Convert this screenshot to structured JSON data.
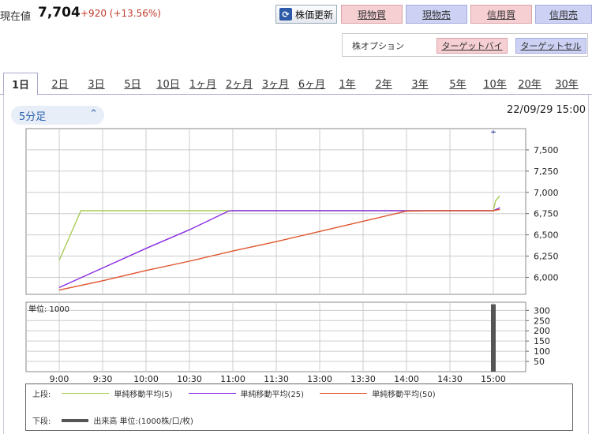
{
  "header": {
    "price_label": "現在値",
    "price_value": "7,704",
    "price_change": "+920 (+13.56%)",
    "refresh_label": "株価更新",
    "buttons": [
      "現物買",
      "現物売",
      "信用買",
      "信用売"
    ]
  },
  "options": {
    "label": "株オプション",
    "target_buy": "ターゲットバイ",
    "target_sell": "ターゲットセル"
  },
  "tabs": [
    "1日",
    "2日",
    "3日",
    "5日",
    "10日",
    "1ヶ月",
    "2ヶ月",
    "3ヶ月",
    "6ヶ月",
    "1年",
    "2年",
    "3年",
    "5年",
    "10年",
    "20年",
    "30年"
  ],
  "active_tab": "1日",
  "interval_select": "5分足",
  "datetime": "22/09/29 15:00",
  "volume_unit": "単位: 1000",
  "legend": {
    "upper_label": "上段:",
    "lower_label": "下段:",
    "ma5": "単純移動平均(5)",
    "ma25": "単純移動平均(25)",
    "ma50": "単純移動平均(50)",
    "volume": "出来高 単位:(1000株/口/枚)"
  },
  "colors": {
    "ma5": "#a8cc55",
    "ma25": "#8a2be2",
    "ma50": "#e0552e",
    "volume": "#555555",
    "price": "#2d3fa0"
  },
  "chart_data": {
    "type": "line",
    "x_ticks": [
      "9:00",
      "9:30",
      "10:00",
      "10:30",
      "11:00",
      "11:30",
      "13:00",
      "13:30",
      "14:00",
      "14:30",
      "15:00"
    ],
    "y_ticks": [
      "6,000",
      "6,250",
      "6,500",
      "6,750",
      "7,000",
      "7,250",
      "7,500"
    ],
    "ylim": [
      5800,
      7750
    ],
    "vol_ticks": [
      "50",
      "100",
      "150",
      "200",
      "250",
      "300"
    ],
    "vol_ylim": [
      0,
      340
    ],
    "series": [
      {
        "name": "単純移動平均(5)",
        "key": "ma5",
        "points": [
          [
            0,
            6200
          ],
          [
            0.5,
            6784
          ],
          [
            1,
            6784
          ],
          [
            2,
            6784
          ],
          [
            3,
            6784
          ],
          [
            4,
            6784
          ],
          [
            5,
            6784
          ],
          [
            6,
            6784
          ],
          [
            7,
            6784
          ],
          [
            8,
            6784
          ],
          [
            9,
            6784
          ],
          [
            10,
            6784
          ],
          [
            10.05,
            6900
          ],
          [
            10.15,
            6960
          ]
        ]
      },
      {
        "name": "単純移動平均(25)",
        "key": "ma25",
        "points": [
          [
            0,
            5880
          ],
          [
            1,
            6110
          ],
          [
            2,
            6340
          ],
          [
            3,
            6560
          ],
          [
            3.9,
            6780
          ],
          [
            4,
            6784
          ],
          [
            5,
            6784
          ],
          [
            6,
            6784
          ],
          [
            7,
            6784
          ],
          [
            8,
            6784
          ],
          [
            9,
            6784
          ],
          [
            10,
            6784
          ],
          [
            10.15,
            6820
          ]
        ]
      },
      {
        "name": "単純移動平均(50)",
        "key": "ma50",
        "points": [
          [
            0,
            5850
          ],
          [
            1,
            5960
          ],
          [
            2,
            6080
          ],
          [
            3,
            6190
          ],
          [
            4,
            6310
          ],
          [
            5,
            6420
          ],
          [
            6,
            6540
          ],
          [
            7,
            6660
          ],
          [
            8,
            6780
          ],
          [
            9,
            6784
          ],
          [
            10,
            6784
          ],
          [
            10.15,
            6800
          ]
        ]
      }
    ],
    "price_marker": {
      "x": 10.0,
      "y": 7710
    },
    "volume": [
      {
        "x": 10.0,
        "value": 330
      }
    ]
  }
}
